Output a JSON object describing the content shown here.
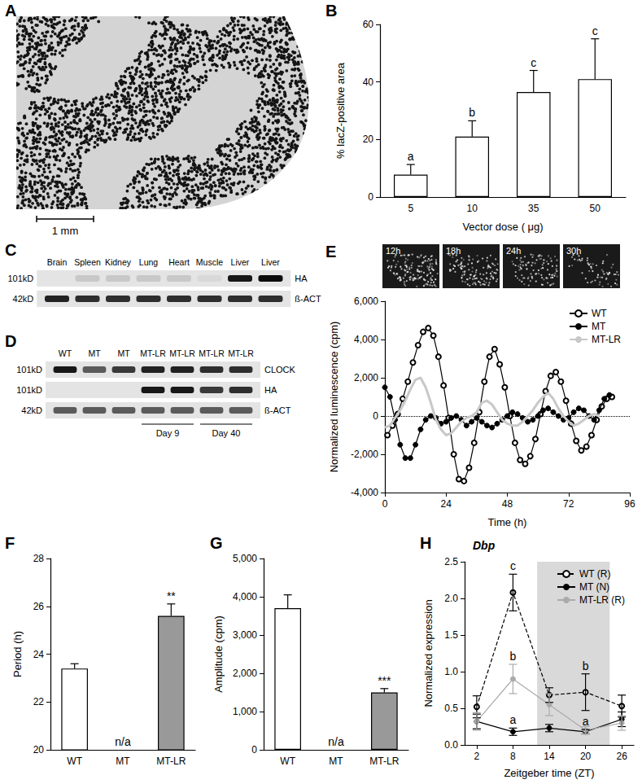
{
  "micrograph": {
    "label": "A",
    "scale_bar": "1 mm"
  },
  "blots": [
    {
      "label": "C",
      "lanes": [
        "Brain",
        "Spleen",
        "Kidney",
        "Lung",
        "Heart",
        "Muscle",
        "Liver",
        "Liver"
      ],
      "rows": [
        {
          "size": "101kD",
          "name": "HA",
          "intensity": [
            0,
            0.12,
            0.12,
            0.12,
            0.12,
            0.05,
            0.9,
            0.95
          ]
        },
        {
          "size": "42kD",
          "name": "ß-ACT",
          "intensity": [
            0.85,
            0.8,
            0.8,
            0.8,
            0.8,
            0.8,
            0.8,
            0.8
          ]
        }
      ]
    },
    {
      "label": "D",
      "lanes": [
        "WT",
        "MT",
        "MT",
        "MT-LR",
        "MT-LR",
        "MT-LR",
        "MT-LR"
      ],
      "rows": [
        {
          "size": "101kD",
          "name": "CLOCK",
          "intensity": [
            0.9,
            0.6,
            0.75,
            0.85,
            0.85,
            0.8,
            0.8
          ]
        },
        {
          "size": "101kD",
          "name": "HA",
          "intensity": [
            0,
            0,
            0,
            0.9,
            0.9,
            0.75,
            0.8
          ]
        },
        {
          "size": "42kD",
          "name": "ß-ACT",
          "intensity": [
            0.6,
            0.6,
            0.6,
            0.6,
            0.6,
            0.6,
            0.6
          ]
        }
      ],
      "groups": [
        {
          "text": "Day 9",
          "lanes": [
            3,
            4
          ]
        },
        {
          "text": "Day 40",
          "lanes": [
            5,
            6
          ]
        }
      ]
    }
  ],
  "chart_data": [
    {
      "label": "B",
      "type": "bar",
      "categories": [
        "5",
        "10",
        "35",
        "50"
      ],
      "values": [
        7.8,
        21,
        36.5,
        41
      ],
      "errors": [
        3.5,
        5.5,
        7.5,
        14
      ],
      "color": "#ffffff",
      "xlabel": "Vector dose ( μg)",
      "ylabel": "% lacZ-positive area",
      "ylim": [
        0,
        60
      ],
      "yticks": [
        0,
        20,
        40,
        60
      ],
      "annotations": [
        {
          "x": "5",
          "text": "a"
        },
        {
          "x": "10",
          "text": "b"
        },
        {
          "x": "35",
          "text": "c"
        },
        {
          "x": "50",
          "text": "c"
        }
      ],
      "grid": false
    },
    {
      "label": "E",
      "type": "line",
      "frames": [
        "12h",
        "18h",
        "24h",
        "30h"
      ],
      "xlabel": "Time (h)",
      "ylabel": "Normalized luminescence (cpm)",
      "xlim": [
        0,
        96
      ],
      "xticks": [
        0,
        24,
        48,
        72,
        96
      ],
      "ylim": [
        -4000,
        6000
      ],
      "yticks": [
        {
          "value": -4000,
          "label": "-4,000"
        },
        {
          "value": -2000,
          "label": "-2,000"
        },
        0,
        {
          "value": 2000,
          "label": "2,000"
        },
        {
          "value": 4000,
          "label": "4,000"
        },
        {
          "value": 6000,
          "label": "6,000"
        }
      ],
      "reference_y": 0,
      "legend": "upper right",
      "grid": false,
      "series": [
        {
          "name": "WT",
          "color": "#000000",
          "marker": "emptyCircle",
          "x": [
            1,
            3,
            5,
            7,
            9,
            11,
            13,
            15,
            17,
            19,
            21,
            23,
            25,
            27,
            29,
            31,
            33,
            35,
            37,
            39,
            41,
            43,
            45,
            47,
            49,
            51,
            53,
            55,
            57,
            59,
            61,
            63,
            65,
            67,
            69,
            71,
            73,
            75,
            77,
            79,
            81,
            83,
            85,
            87,
            89
          ],
          "values": [
            -1000,
            -500,
            100,
            900,
            1800,
            2800,
            3700,
            4400,
            4600,
            4200,
            3100,
            1600,
            -100,
            -2000,
            -3300,
            -3400,
            -2700,
            -1400,
            200,
            1800,
            3100,
            3500,
            2700,
            1500,
            0,
            -1400,
            -2300,
            -2500,
            -2100,
            -1200,
            100,
            1300,
            2100,
            2300,
            1800,
            800,
            -400,
            -1300,
            -1800,
            -1600,
            -1000,
            -200,
            500,
            900,
            1000
          ]
        },
        {
          "name": "MT",
          "color": "#000000",
          "marker": "circle",
          "x": [
            0,
            2,
            4,
            6,
            8,
            10,
            12,
            14,
            16,
            18,
            20,
            22,
            24,
            26,
            28,
            30,
            32,
            34,
            36,
            38,
            40,
            42,
            44,
            46,
            48,
            50,
            52,
            54,
            56,
            58,
            60,
            62,
            64,
            66,
            68,
            70,
            72,
            74,
            76,
            78,
            80,
            82,
            84,
            86,
            88
          ],
          "values": [
            1500,
            1000,
            -200,
            -1500,
            -2200,
            -2200,
            -1500,
            -700,
            -200,
            0,
            -100,
            -400,
            -300,
            -100,
            0,
            -200,
            -500,
            -300,
            -100,
            -300,
            -500,
            -600,
            -400,
            -200,
            0,
            200,
            100,
            -100,
            -300,
            -200,
            0,
            300,
            400,
            200,
            0,
            -200,
            -100,
            200,
            400,
            300,
            0,
            -200,
            300,
            900,
            1100
          ]
        },
        {
          "name": "MT-LR",
          "color": "#c8c8c8",
          "marker": "none",
          "x": [
            0,
            2,
            4,
            6,
            8,
            10,
            12,
            14,
            16,
            18,
            20,
            22,
            24,
            26,
            28,
            30,
            32,
            34,
            36,
            38,
            40,
            42,
            44,
            46,
            48,
            50,
            52,
            54,
            56,
            58,
            60,
            62,
            64,
            66,
            68,
            70,
            72,
            74,
            76,
            78,
            80,
            82,
            84
          ],
          "values": [
            -600,
            -500,
            -100,
            300,
            800,
            1400,
            1900,
            2000,
            1500,
            700,
            -200,
            -700,
            -1000,
            -900,
            -600,
            -300,
            -100,
            0,
            200,
            700,
            800,
            600,
            200,
            -200,
            -400,
            -500,
            -500,
            -300,
            0,
            300,
            700,
            1000,
            1200,
            900,
            400,
            0,
            -300,
            -500,
            -400,
            -200,
            0,
            100,
            0
          ]
        }
      ]
    },
    {
      "label": "F",
      "type": "bar",
      "categories": [
        "WT",
        "MT",
        "MT-LR"
      ],
      "values": [
        23.4,
        null,
        25.6
      ],
      "errors": [
        0.2,
        null,
        0.5
      ],
      "colors": [
        "#ffffff",
        "#ffffff",
        "#999999"
      ],
      "ylabel": "Period (h)",
      "ylim": [
        20,
        28
      ],
      "yticks": [
        20,
        22,
        24,
        26,
        28
      ],
      "annotations": [
        {
          "x": "MT",
          "text": "n/a"
        },
        {
          "x": "MT-LR",
          "text": "**"
        }
      ],
      "grid": false
    },
    {
      "label": "G",
      "type": "bar",
      "categories": [
        "WT",
        "MT",
        "MT-LR"
      ],
      "values": [
        3700,
        null,
        1500
      ],
      "errors": [
        350,
        null,
        100
      ],
      "colors": [
        "#ffffff",
        "#ffffff",
        "#999999"
      ],
      "ylabel": "Amplitude (cpm)",
      "ylim": [
        0,
        5000
      ],
      "yticks": [
        0,
        {
          "value": 1000,
          "label": "1,000"
        },
        {
          "value": 2000,
          "label": "2,000"
        },
        {
          "value": 3000,
          "label": "3,000"
        },
        {
          "value": 4000,
          "label": "4,000"
        },
        {
          "value": 5000,
          "label": "5,000"
        }
      ],
      "annotations": [
        {
          "x": "MT",
          "text": "n/a"
        },
        {
          "x": "MT-LR",
          "text": "***"
        }
      ],
      "grid": false
    },
    {
      "label": "H",
      "type": "line",
      "title": "Dbp",
      "xlabel": "Zeitgeber time (ZT)",
      "ylabel": "Normalized expression",
      "x": [
        2,
        8,
        14,
        20,
        26
      ],
      "xlim": [
        0,
        28
      ],
      "xticks": [
        2,
        8,
        14,
        20,
        26
      ],
      "ylim": [
        0,
        2.5
      ],
      "yticks": [
        {
          "value": 0,
          "label": "0.0"
        },
        {
          "value": 0.5,
          "label": "0.5"
        },
        {
          "value": 1,
          "label": "1.0"
        },
        {
          "value": 1.5,
          "label": "1.5"
        },
        {
          "value": 2,
          "label": "2.0"
        },
        {
          "value": 2.5,
          "label": "2.5"
        }
      ],
      "shaded_x": [
        12,
        24
      ],
      "legend": "upper right",
      "grid": false,
      "series": [
        {
          "name": "WT (R)",
          "color": "#000000",
          "marker": "emptyCircle",
          "line_style": "dashed",
          "values": [
            0.52,
            2.08,
            0.68,
            0.72,
            0.53
          ],
          "errors": [
            0.15,
            0.25,
            0.1,
            0.25,
            0.15
          ]
        },
        {
          "name": "MT (N)",
          "color": "#000000",
          "marker": "circle",
          "line_style": "solid",
          "values": [
            0.32,
            0.18,
            0.23,
            0.18,
            0.35
          ],
          "errors": [
            0.1,
            0.05,
            0.05,
            0.03,
            0.1
          ]
        },
        {
          "name": "MT-LR (R)",
          "color": "#aaaaaa",
          "marker": "circle",
          "line_style": "solid",
          "values": [
            0.32,
            0.9,
            0.55,
            0.2,
            0.3
          ],
          "errors": [
            0.12,
            0.2,
            0.15,
            0.05,
            0.1
          ]
        }
      ],
      "annotations": [
        {
          "x": 8,
          "series": "WT (R)",
          "text": "c"
        },
        {
          "x": 8,
          "series": "MT-LR (R)",
          "text": "b"
        },
        {
          "x": 8,
          "series": "MT (N)",
          "text": "a"
        },
        {
          "x": 20,
          "series": "WT (R)",
          "text": "b"
        },
        {
          "x": 20,
          "series": "MT (N)",
          "text": "a"
        }
      ]
    }
  ]
}
